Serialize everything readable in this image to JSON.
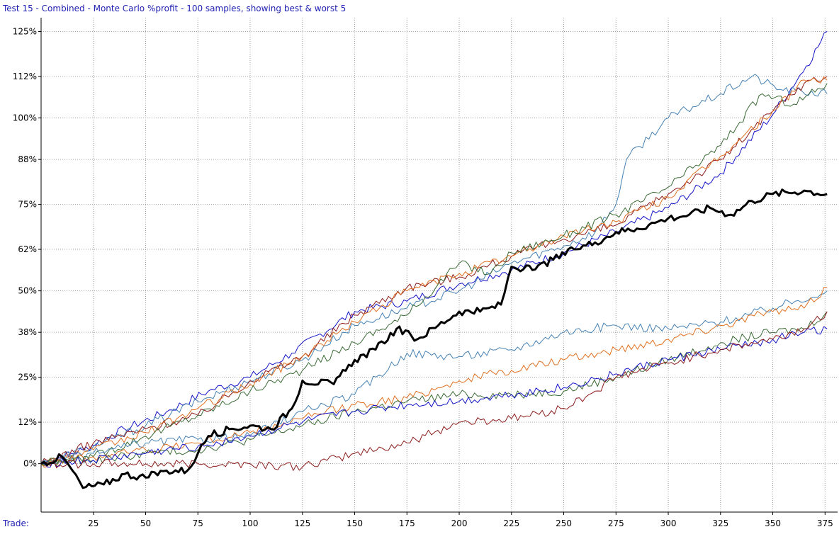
{
  "chart_data": {
    "type": "line",
    "title": "Test 15 - Combined - Monte Carlo %profit - 100 samples, showing best & worst 5",
    "xlabel": "Trade:",
    "ylabel": "",
    "x_ticks": [
      "25",
      "50",
      "75",
      "100",
      "125",
      "150",
      "175",
      "200",
      "225",
      "250",
      "275",
      "300",
      "325",
      "350",
      "375"
    ],
    "y_ticks": [
      "125%",
      "112%",
      "100%",
      "88%",
      "75%",
      "62%",
      "50%",
      "38%",
      "25%",
      "12%",
      "0%"
    ],
    "xlim": [
      0,
      381
    ],
    "ylim": [
      -14,
      129
    ],
    "grid": true,
    "legend": "none",
    "series": [
      {
        "color": "#1414c8",
        "width": 1,
        "points": [
          [
            0,
            0
          ],
          [
            20,
            4
          ],
          [
            40,
            10
          ],
          [
            60,
            15
          ],
          [
            80,
            21
          ],
          [
            100,
            25
          ],
          [
            120,
            32
          ],
          [
            150,
            44
          ],
          [
            175,
            47
          ],
          [
            200,
            52
          ],
          [
            225,
            56
          ],
          [
            250,
            61
          ],
          [
            275,
            67
          ],
          [
            300,
            74
          ],
          [
            325,
            84
          ],
          [
            350,
            101
          ],
          [
            366,
            115
          ],
          [
            376,
            125
          ]
        ]
      },
      {
        "color": "#4682b4",
        "width": 1,
        "points": [
          [
            0,
            0
          ],
          [
            25,
            5
          ],
          [
            50,
            11
          ],
          [
            75,
            18
          ],
          [
            100,
            24
          ],
          [
            125,
            30
          ],
          [
            150,
            40
          ],
          [
            175,
            45
          ],
          [
            200,
            50
          ],
          [
            225,
            58
          ],
          [
            250,
            63
          ],
          [
            265,
            67
          ],
          [
            275,
            75
          ],
          [
            280,
            88
          ],
          [
            300,
            100
          ],
          [
            325,
            107
          ],
          [
            340,
            112
          ],
          [
            355,
            108
          ],
          [
            376,
            107
          ]
        ]
      },
      {
        "color": "#8b1a1a",
        "width": 1,
        "points": [
          [
            0,
            0
          ],
          [
            25,
            6
          ],
          [
            50,
            10
          ],
          [
            75,
            14
          ],
          [
            100,
            24
          ],
          [
            125,
            31
          ],
          [
            150,
            43
          ],
          [
            175,
            51
          ],
          [
            200,
            54
          ],
          [
            225,
            60
          ],
          [
            250,
            65
          ],
          [
            275,
            69
          ],
          [
            300,
            78
          ],
          [
            325,
            88
          ],
          [
            350,
            102
          ],
          [
            365,
            110
          ],
          [
            376,
            112
          ]
        ]
      },
      {
        "color": "#e07020",
        "width": 1,
        "points": [
          [
            0,
            0
          ],
          [
            25,
            4
          ],
          [
            50,
            9
          ],
          [
            75,
            16
          ],
          [
            100,
            23
          ],
          [
            125,
            31
          ],
          [
            150,
            41
          ],
          [
            175,
            50
          ],
          [
            200,
            55
          ],
          [
            225,
            60
          ],
          [
            250,
            66
          ],
          [
            275,
            70
          ],
          [
            300,
            77
          ],
          [
            325,
            89
          ],
          [
            350,
            102
          ],
          [
            365,
            111
          ],
          [
            376,
            111
          ]
        ]
      },
      {
        "color": "#3a6b35",
        "width": 1,
        "points": [
          [
            0,
            0
          ],
          [
            25,
            2
          ],
          [
            50,
            8
          ],
          [
            75,
            14
          ],
          [
            100,
            21
          ],
          [
            125,
            27
          ],
          [
            150,
            35
          ],
          [
            175,
            43
          ],
          [
            200,
            58
          ],
          [
            215,
            55
          ],
          [
            225,
            61
          ],
          [
            250,
            66
          ],
          [
            275,
            72
          ],
          [
            300,
            80
          ],
          [
            325,
            92
          ],
          [
            345,
            107
          ],
          [
            360,
            104
          ],
          [
            376,
            110
          ]
        ]
      },
      {
        "color": "#000000",
        "width": 3,
        "points": [
          [
            0,
            0
          ],
          [
            10,
            2
          ],
          [
            15,
            -2
          ],
          [
            20,
            -7
          ],
          [
            30,
            -6
          ],
          [
            40,
            -3
          ],
          [
            50,
            -4
          ],
          [
            60,
            -2
          ],
          [
            70,
            -2
          ],
          [
            75,
            3
          ],
          [
            80,
            8
          ],
          [
            90,
            10
          ],
          [
            100,
            11
          ],
          [
            110,
            10
          ],
          [
            120,
            16
          ],
          [
            125,
            24
          ],
          [
            140,
            23
          ],
          [
            150,
            30
          ],
          [
            160,
            33
          ],
          [
            170,
            39
          ],
          [
            180,
            36
          ],
          [
            190,
            40
          ],
          [
            200,
            44
          ],
          [
            210,
            44
          ],
          [
            220,
            46
          ],
          [
            225,
            57
          ],
          [
            235,
            56
          ],
          [
            245,
            59
          ],
          [
            255,
            62
          ],
          [
            265,
            64
          ],
          [
            275,
            67
          ],
          [
            285,
            68
          ],
          [
            295,
            70
          ],
          [
            300,
            71
          ],
          [
            310,
            72
          ],
          [
            320,
            74
          ],
          [
            330,
            72
          ],
          [
            340,
            76
          ],
          [
            350,
            78
          ],
          [
            365,
            79
          ],
          [
            376,
            78
          ]
        ]
      },
      {
        "color": "#4682b4",
        "width": 1,
        "points": [
          [
            0,
            0
          ],
          [
            25,
            3
          ],
          [
            50,
            6
          ],
          [
            75,
            7
          ],
          [
            100,
            8
          ],
          [
            125,
            15
          ],
          [
            150,
            20
          ],
          [
            175,
            32
          ],
          [
            200,
            31
          ],
          [
            225,
            33
          ],
          [
            250,
            38
          ],
          [
            275,
            40
          ],
          [
            300,
            39
          ],
          [
            325,
            41
          ],
          [
            350,
            45
          ],
          [
            376,
            50
          ]
        ]
      },
      {
        "color": "#e07020",
        "width": 1,
        "points": [
          [
            0,
            0
          ],
          [
            25,
            2
          ],
          [
            50,
            4
          ],
          [
            75,
            6
          ],
          [
            100,
            9
          ],
          [
            125,
            13
          ],
          [
            150,
            17
          ],
          [
            175,
            19
          ],
          [
            200,
            24
          ],
          [
            225,
            27
          ],
          [
            250,
            30
          ],
          [
            275,
            33
          ],
          [
            300,
            36
          ],
          [
            325,
            40
          ],
          [
            350,
            44
          ],
          [
            365,
            45
          ],
          [
            376,
            51
          ]
        ]
      },
      {
        "color": "#3a6b35",
        "width": 1,
        "points": [
          [
            0,
            0
          ],
          [
            25,
            1
          ],
          [
            50,
            3
          ],
          [
            75,
            4
          ],
          [
            100,
            7
          ],
          [
            125,
            11
          ],
          [
            150,
            15
          ],
          [
            175,
            18
          ],
          [
            200,
            20
          ],
          [
            225,
            20
          ],
          [
            250,
            21
          ],
          [
            275,
            25
          ],
          [
            300,
            30
          ],
          [
            325,
            35
          ],
          [
            350,
            38
          ],
          [
            365,
            39
          ],
          [
            376,
            44
          ]
        ]
      },
      {
        "color": "#1414c8",
        "width": 1,
        "points": [
          [
            0,
            0
          ],
          [
            25,
            1
          ],
          [
            50,
            3
          ],
          [
            75,
            5
          ],
          [
            100,
            8
          ],
          [
            125,
            12
          ],
          [
            150,
            15
          ],
          [
            175,
            17
          ],
          [
            200,
            18
          ],
          [
            225,
            20
          ],
          [
            250,
            22
          ],
          [
            275,
            26
          ],
          [
            300,
            30
          ],
          [
            325,
            33
          ],
          [
            350,
            36
          ],
          [
            365,
            38
          ],
          [
            376,
            39
          ]
        ]
      },
      {
        "color": "#8b1a1a",
        "width": 1,
        "points": [
          [
            0,
            0
          ],
          [
            25,
            0
          ],
          [
            50,
            0
          ],
          [
            75,
            0
          ],
          [
            100,
            0
          ],
          [
            125,
            -1
          ],
          [
            150,
            3
          ],
          [
            175,
            6
          ],
          [
            200,
            12
          ],
          [
            225,
            13
          ],
          [
            250,
            16
          ],
          [
            265,
            21
          ],
          [
            275,
            25
          ],
          [
            300,
            29
          ],
          [
            325,
            33
          ],
          [
            350,
            36
          ],
          [
            365,
            39
          ],
          [
            376,
            44
          ]
        ]
      }
    ]
  }
}
